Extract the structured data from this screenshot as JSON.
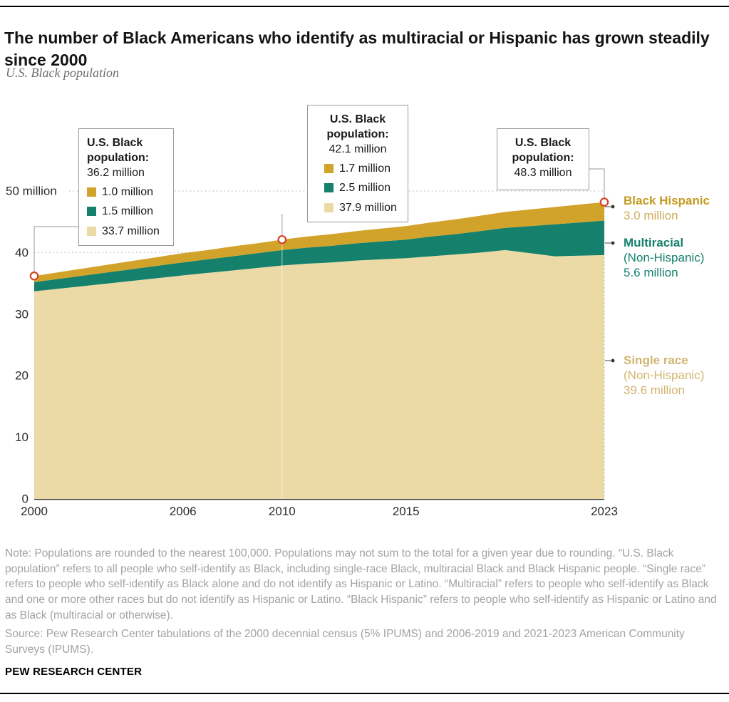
{
  "header": {
    "title": "The number of Black Americans who identify as multiracial or Hispanic has grown steadily since 2000",
    "subtitle": "U.S. Black population"
  },
  "callouts": [
    {
      "title": "U.S. Black population:",
      "total": "36.2 million",
      "items": [
        {
          "value": "1.0 million"
        },
        {
          "value": "1.5 million"
        },
        {
          "value": "33.7 million"
        }
      ]
    },
    {
      "title": "U.S. Black population:",
      "total": "42.1 million",
      "items": [
        {
          "value": "1.7 million"
        },
        {
          "value": "2.5 million"
        },
        {
          "value": "37.9 million"
        }
      ]
    },
    {
      "title": "U.S. Black population:",
      "total": "48.3 million",
      "items": []
    }
  ],
  "side_labels": {
    "black_hispanic": {
      "label": "Black Hispanic",
      "value": "3.0 million",
      "label_color": "#C49A1F",
      "value_color": "#CBAD58"
    },
    "multiracial": {
      "label": "Multiracial",
      "qualifier": "(Non-Hispanic)",
      "value": "5.6 million",
      "color": "#15806C"
    },
    "single_race": {
      "label": "Single race",
      "qualifier": "(Non-Hispanic)",
      "value": "39.6 million",
      "color": "#D2B570"
    }
  },
  "footer": {
    "note": "Note: Populations are rounded to the nearest 100,000. Populations may not sum to the total for a given year due to rounding. “U.S. Black population” refers to all people who self-identify as Black, including single-race Black, multiracial Black and Black Hispanic people. “Single race” refers to people who self-identify as Black alone and do not identify as Hispanic or Latino. “Multiracial” refers to people who self-identify as Black and one or more other races but do not identify as Hispanic or Latino. “Black Hispanic” refers to people who self-identify as Hispanic or Latino and as Black (multiracial or otherwise).",
    "source": "Source: Pew Research Center tabulations of the 2000 decennial census (5% IPUMS) and 2006-2019 and 2021-2023 American Community Surveys (IPUMS).",
    "brand": "PEW RESEARCH CENTER"
  },
  "chart_data": {
    "type": "area",
    "title": "U.S. Black population",
    "units": "millions",
    "x": [
      2000,
      2006,
      2007,
      2008,
      2009,
      2010,
      2011,
      2012,
      2013,
      2014,
      2015,
      2016,
      2017,
      2018,
      2019,
      2021,
      2022,
      2023
    ],
    "series": [
      {
        "id": "single_race",
        "name": "Single race (Non-Hispanic)",
        "color": "#EBD9A6",
        "values": [
          33.7,
          36.3,
          36.7,
          37.1,
          37.5,
          37.9,
          38.2,
          38.4,
          38.7,
          38.9,
          39.1,
          39.4,
          39.7,
          40.0,
          40.4,
          39.4,
          39.5,
          39.6
        ]
      },
      {
        "id": "multiracial",
        "name": "Multiracial (Non-Hispanic)",
        "color": "#15806C",
        "values": [
          1.5,
          2.1,
          2.2,
          2.3,
          2.4,
          2.5,
          2.6,
          2.7,
          2.8,
          2.9,
          3.0,
          3.2,
          3.3,
          3.5,
          3.6,
          5.2,
          5.4,
          5.6
        ]
      },
      {
        "id": "black_hispanic",
        "name": "Black Hispanic",
        "color": "#D2A32A",
        "values": [
          1.0,
          1.5,
          1.5,
          1.6,
          1.6,
          1.7,
          1.8,
          1.9,
          2.0,
          2.1,
          2.2,
          2.3,
          2.4,
          2.5,
          2.6,
          2.8,
          2.9,
          3.0
        ]
      }
    ],
    "highlights": [
      {
        "year": 2000,
        "total_label": "36.2 million"
      },
      {
        "year": 2010,
        "total_label": "42.1 million"
      },
      {
        "year": 2023,
        "total_label": "48.3 million"
      }
    ],
    "yticks": [
      0,
      10,
      20,
      30,
      40,
      50
    ],
    "ytick_top_label": "50 million",
    "xticks": [
      2000,
      2006,
      2010,
      2015,
      2023
    ],
    "ylim": [
      0,
      50
    ],
    "xlim": [
      2000,
      2023
    ],
    "grid": "dotted-horizontal",
    "marker_color": "#CF4427",
    "legend_position": "right-annotations"
  }
}
